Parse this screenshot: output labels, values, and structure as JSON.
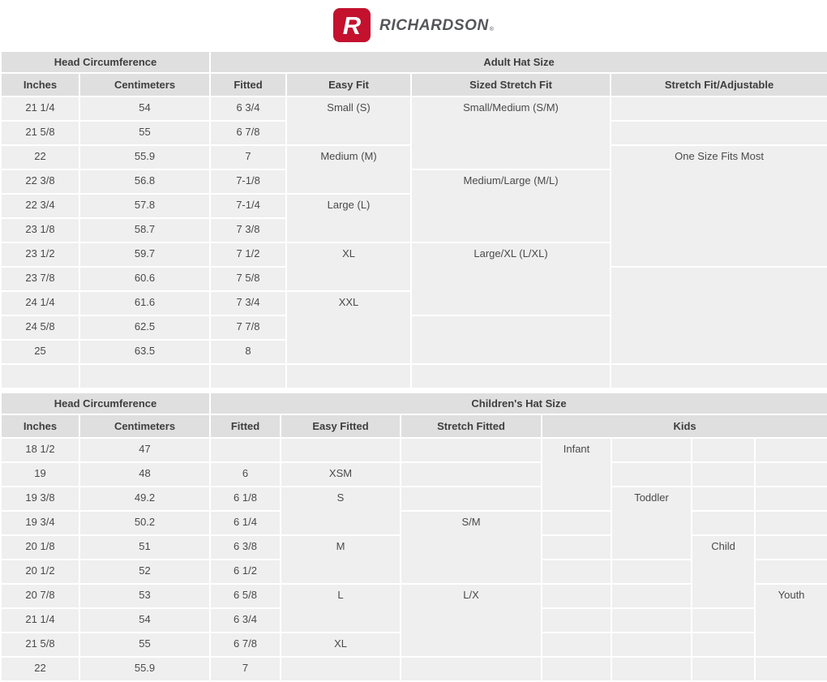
{
  "brand": {
    "logo_letter": "R",
    "name": "RICHARDSON",
    "registered": "®"
  },
  "colors": {
    "header_bg": "#dfdfdf",
    "cell_bg": "#efefef",
    "logo_red": "#c3112e",
    "wordmark_gray": "#55565a"
  },
  "adult_table": {
    "name": "adult-hat-size-table",
    "group_headers": [
      {
        "label": "Head Circumference",
        "colspan": 2
      },
      {
        "label": "Adult Hat Size",
        "colspan": 4
      }
    ],
    "column_headers": [
      {
        "label": "Inches"
      },
      {
        "label": "Centimeters"
      },
      {
        "label": "Fitted"
      },
      {
        "label": "Easy Fit"
      },
      {
        "label": "Sized Stretch Fit"
      },
      {
        "label": "Stretch Fit/Adjustable"
      }
    ],
    "rows": [
      {
        "cells": [
          {
            "v": "21 1/4"
          },
          {
            "v": "54"
          },
          {
            "v": "6 3/4"
          },
          {
            "v": "Small (S)",
            "rs": 2
          },
          {
            "v": "Small/Medium (S/M)",
            "rs": 3
          },
          {
            "v": ""
          }
        ]
      },
      {
        "cells": [
          {
            "v": "21 5/8"
          },
          {
            "v": "55"
          },
          {
            "v": "6 7/8"
          },
          {
            "v": ""
          }
        ]
      },
      {
        "cells": [
          {
            "v": "22"
          },
          {
            "v": "55.9"
          },
          {
            "v": "7"
          },
          {
            "v": "Medium (M)",
            "rs": 2
          },
          {
            "v": "One Size Fits Most",
            "rs": 5
          }
        ]
      },
      {
        "cells": [
          {
            "v": "22 3/8"
          },
          {
            "v": "56.8"
          },
          {
            "v": "7-1/8"
          },
          {
            "v": "Medium/Large (M/L)",
            "rs": 3
          }
        ]
      },
      {
        "cells": [
          {
            "v": "22 3/4"
          },
          {
            "v": "57.8"
          },
          {
            "v": "7-1/4"
          },
          {
            "v": "Large (L)",
            "rs": 2
          }
        ]
      },
      {
        "cells": [
          {
            "v": "23 1/8"
          },
          {
            "v": "58.7"
          },
          {
            "v": "7 3/8"
          }
        ]
      },
      {
        "cells": [
          {
            "v": "23 1/2"
          },
          {
            "v": "59.7"
          },
          {
            "v": "7 1/2"
          },
          {
            "v": "XL",
            "rs": 2
          },
          {
            "v": "Large/XL (L/XL)",
            "rs": 3
          }
        ]
      },
      {
        "cells": [
          {
            "v": "23 7/8"
          },
          {
            "v": "60.6"
          },
          {
            "v": "7 5/8"
          },
          {
            "v": "",
            "rs": 4
          }
        ]
      },
      {
        "cells": [
          {
            "v": "24 1/4"
          },
          {
            "v": "61.6"
          },
          {
            "v": "7 3/4"
          },
          {
            "v": "XXL",
            "rs": 3
          }
        ]
      },
      {
        "cells": [
          {
            "v": "24 5/8"
          },
          {
            "v": "62.5"
          },
          {
            "v": "7 7/8"
          },
          {
            "v": "",
            "rs": 2
          }
        ]
      },
      {
        "cells": [
          {
            "v": "25"
          },
          {
            "v": "63.5"
          },
          {
            "v": "8"
          }
        ]
      },
      {
        "cells": [
          {
            "v": ""
          },
          {
            "v": ""
          },
          {
            "v": ""
          },
          {
            "v": ""
          },
          {
            "v": ""
          },
          {
            "v": ""
          }
        ]
      }
    ]
  },
  "children_table": {
    "name": "childrens-hat-size-table",
    "group_headers": [
      {
        "label": "Head Circumference",
        "colspan": 2
      },
      {
        "label": "Children's Hat Size",
        "colspan": 7
      }
    ],
    "column_headers": [
      {
        "label": "Inches"
      },
      {
        "label": "Centimeters"
      },
      {
        "label": "Fitted"
      },
      {
        "label": "Easy Fitted"
      },
      {
        "label": "Stretch Fitted"
      },
      {
        "label": "Kids",
        "colspan": 4
      }
    ],
    "rows": [
      {
        "cells": [
          {
            "v": "18 1/2"
          },
          {
            "v": "47"
          },
          {
            "v": "",
            "cls": "absent"
          },
          {
            "v": "",
            "cls": "absent"
          },
          {
            "v": "",
            "cls": "absent"
          },
          {
            "v": "Infant",
            "rs": 3
          },
          {
            "v": "",
            "cls": "absent"
          },
          {
            "v": "",
            "cls": "absent"
          },
          {
            "v": "",
            "cls": "absent"
          }
        ]
      },
      {
        "cells": [
          {
            "v": "19"
          },
          {
            "v": "48"
          },
          {
            "v": "6"
          },
          {
            "v": "XSM"
          },
          {
            "v": "",
            "cls": "absent"
          },
          {
            "v": "",
            "cls": "absent"
          },
          {
            "v": "",
            "cls": "absent"
          },
          {
            "v": "",
            "cls": "absent"
          }
        ]
      },
      {
        "cells": [
          {
            "v": "19 3/8"
          },
          {
            "v": "49.2"
          },
          {
            "v": "6 1/8"
          },
          {
            "v": "S",
            "rs": 2
          },
          {
            "v": "",
            "cls": "absent"
          },
          {
            "v": "Toddler",
            "rs": 3
          },
          {
            "v": "",
            "cls": "absent"
          },
          {
            "v": "",
            "cls": "absent"
          }
        ]
      },
      {
        "cells": [
          {
            "v": "19 3/4"
          },
          {
            "v": "50.2"
          },
          {
            "v": "6 1/4"
          },
          {
            "v": "S/M",
            "rs": 3
          },
          {
            "v": "",
            "cls": "absent"
          },
          {
            "v": "",
            "cls": "absent"
          },
          {
            "v": "",
            "cls": "absent"
          }
        ]
      },
      {
        "cells": [
          {
            "v": "20 1/8"
          },
          {
            "v": "51"
          },
          {
            "v": "6 3/8"
          },
          {
            "v": "M",
            "rs": 2
          },
          {
            "v": "",
            "cls": "absent"
          },
          {
            "v": "Child",
            "rs": 3
          },
          {
            "v": "",
            "cls": "absent"
          }
        ]
      },
      {
        "cells": [
          {
            "v": "20 1/2"
          },
          {
            "v": "52"
          },
          {
            "v": "6 1/2"
          },
          {
            "v": "",
            "cls": "absent"
          },
          {
            "v": "",
            "cls": "absent"
          },
          {
            "v": "",
            "cls": "absent"
          }
        ]
      },
      {
        "cells": [
          {
            "v": "20 7/8"
          },
          {
            "v": "53"
          },
          {
            "v": "6 5/8"
          },
          {
            "v": "L",
            "rs": 2
          },
          {
            "v": "L/X",
            "rs": 3
          },
          {
            "v": "",
            "cls": "absent"
          },
          {
            "v": "",
            "cls": "absent"
          },
          {
            "v": "Youth",
            "rs": 3
          }
        ]
      },
      {
        "cells": [
          {
            "v": "21 1/4"
          },
          {
            "v": "54"
          },
          {
            "v": "6 3/4"
          },
          {
            "v": "",
            "cls": "absent"
          },
          {
            "v": "",
            "cls": "absent"
          },
          {
            "v": "",
            "cls": "absent"
          }
        ]
      },
      {
        "cells": [
          {
            "v": "21 5/8"
          },
          {
            "v": "55"
          },
          {
            "v": "6 7/8"
          },
          {
            "v": "XL"
          },
          {
            "v": "",
            "cls": "absent"
          },
          {
            "v": "",
            "cls": "absent"
          },
          {
            "v": "",
            "cls": "absent"
          }
        ]
      },
      {
        "cells": [
          {
            "v": "22"
          },
          {
            "v": "55.9"
          },
          {
            "v": "7"
          },
          {
            "v": "",
            "cls": "absent"
          },
          {
            "v": "",
            "cls": "absent"
          },
          {
            "v": "",
            "cls": "absent"
          },
          {
            "v": "",
            "cls": "absent"
          },
          {
            "v": "",
            "cls": "absent"
          },
          {
            "v": "",
            "cls": "absent"
          }
        ]
      }
    ]
  }
}
